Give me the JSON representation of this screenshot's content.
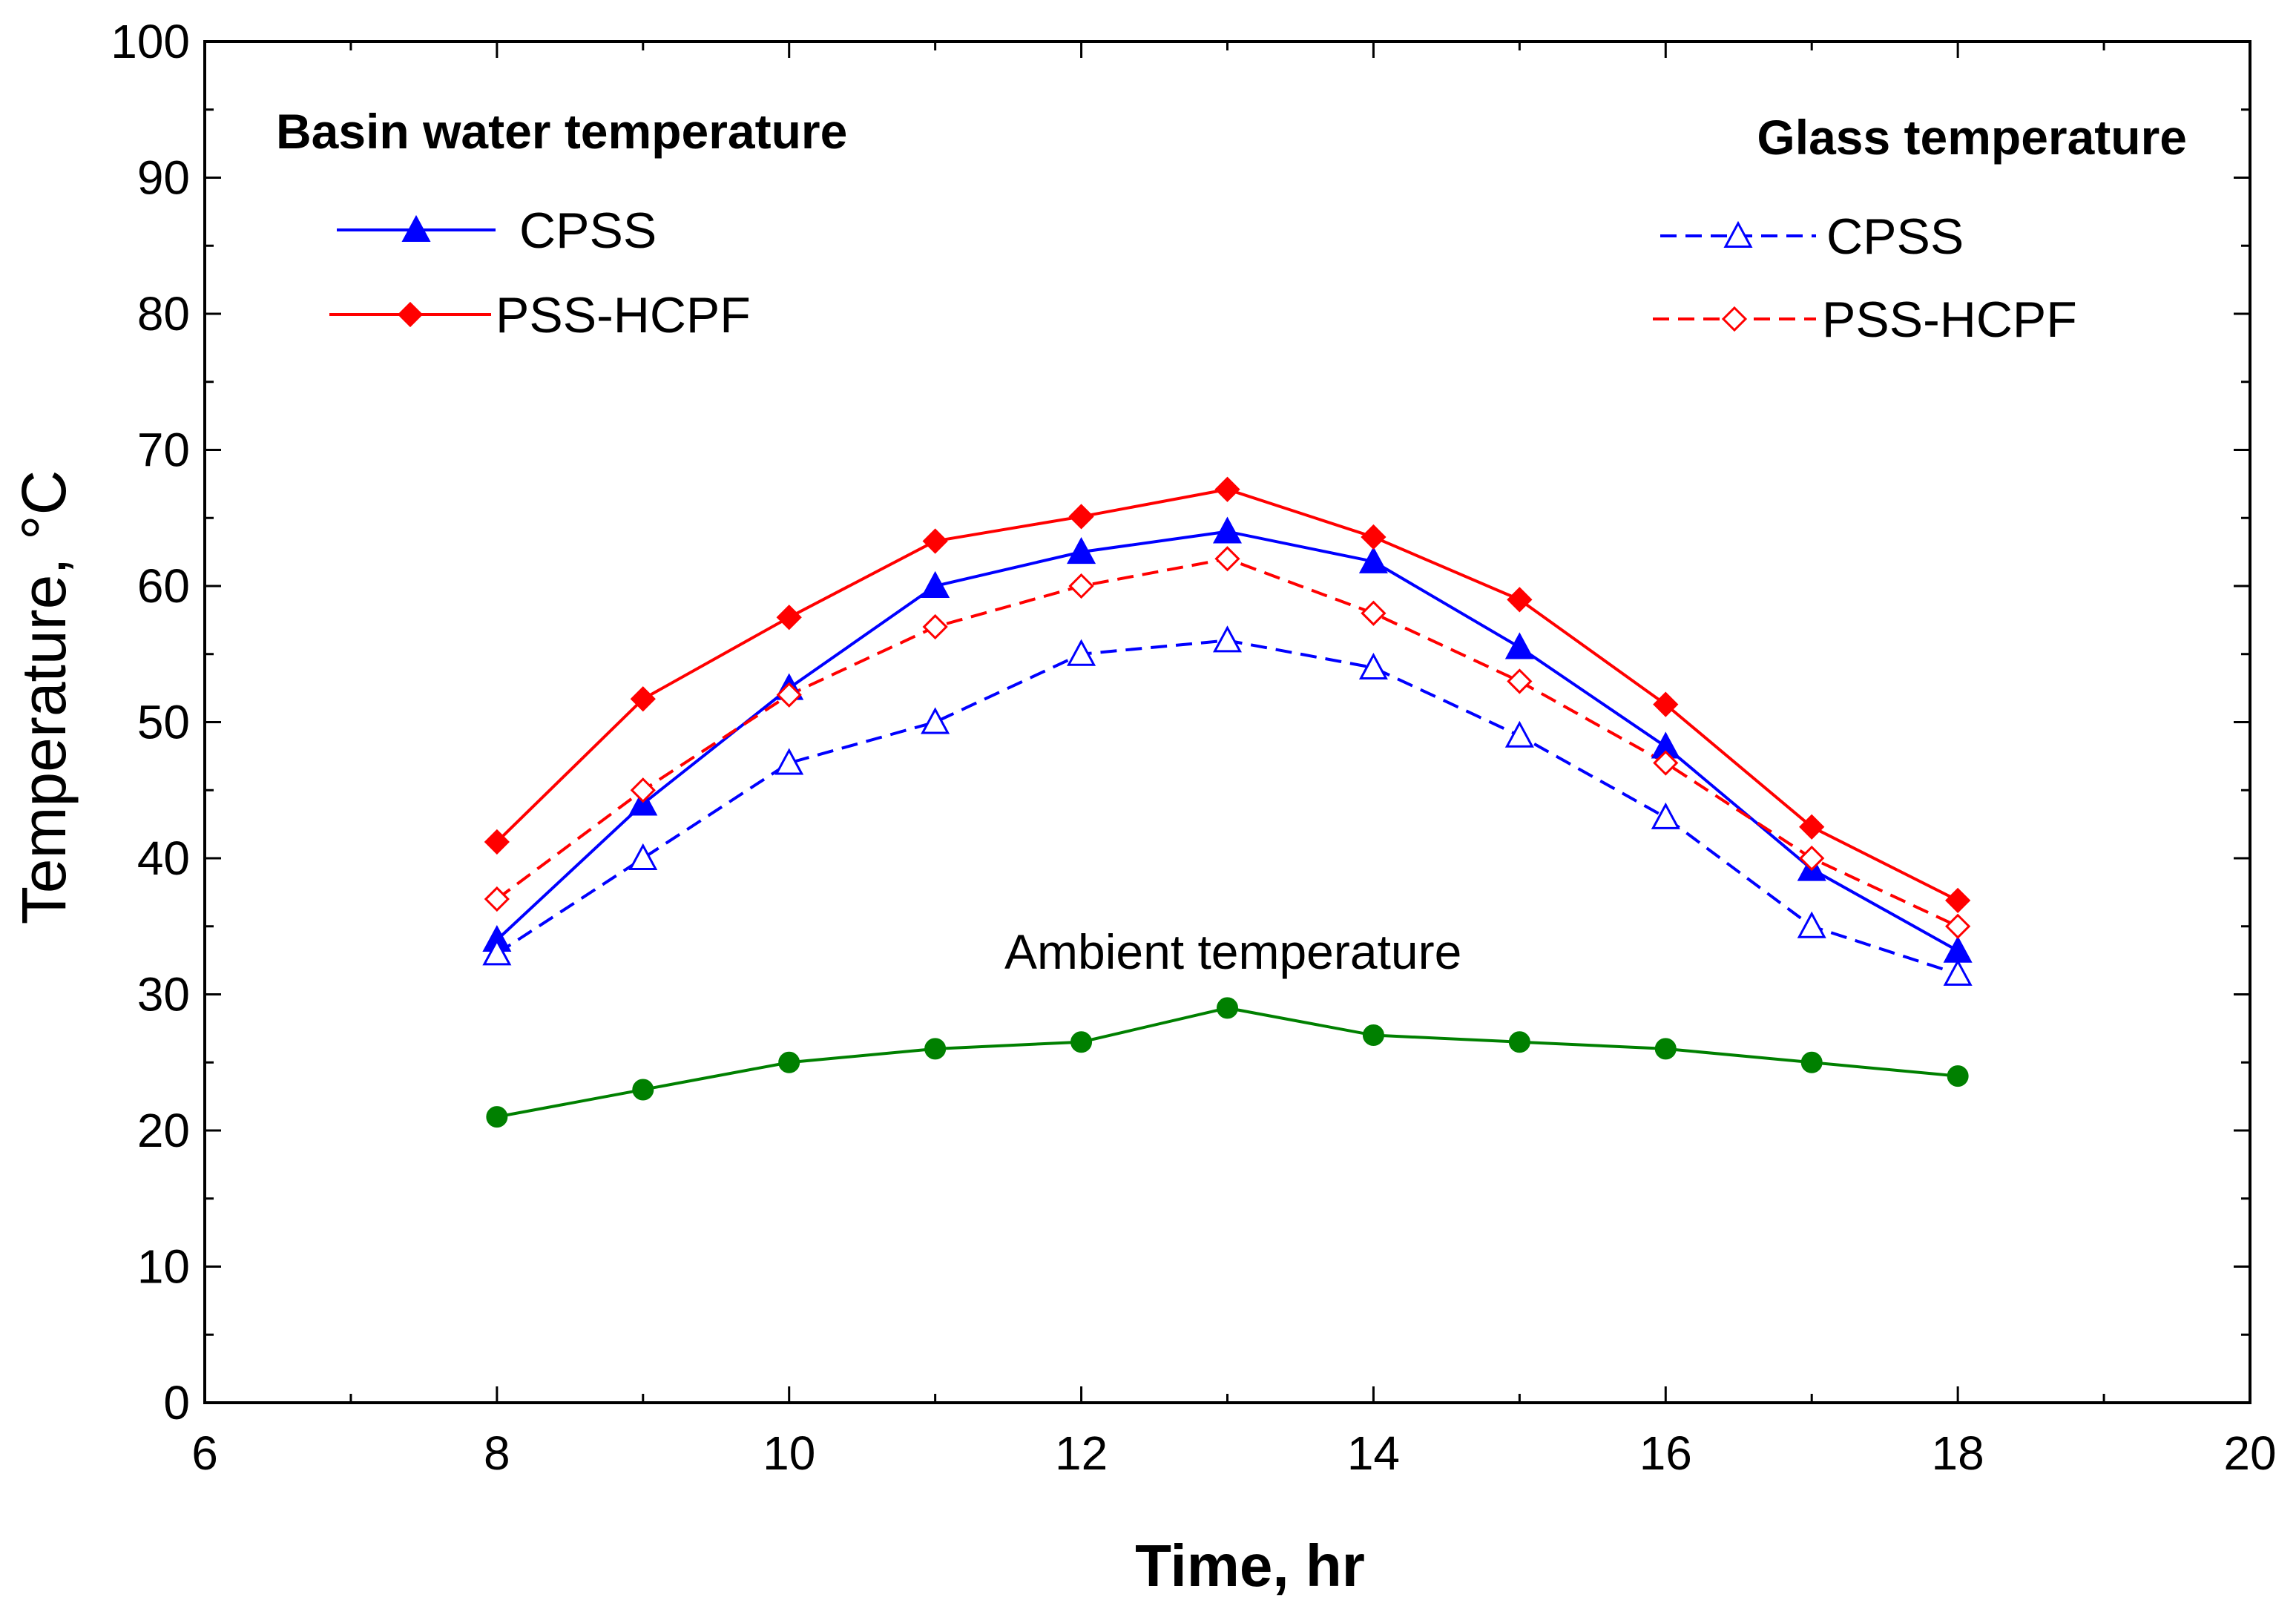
{
  "chart_data": {
    "type": "line",
    "xlabel": "Time, hr",
    "ylabel": "Temperature, °C",
    "xlim": [
      6,
      20
    ],
    "ylim": [
      0,
      100
    ],
    "xticks": [
      6,
      8,
      10,
      12,
      14,
      16,
      18,
      20
    ],
    "yticks": [
      0,
      10,
      20,
      30,
      40,
      50,
      60,
      70,
      80,
      90,
      100
    ],
    "grid": false,
    "x": [
      8,
      9,
      10,
      11,
      12,
      13,
      14,
      15,
      16,
      17,
      18
    ],
    "legend_groups": [
      {
        "heading": "Basin water temperature",
        "placement": "top-left"
      },
      {
        "heading": "Glass temperature",
        "placement": "top-right"
      }
    ],
    "annotations": [
      {
        "text": "Ambient temperature"
      }
    ],
    "series": [
      {
        "name": "CPSS",
        "group": "Basin water temperature",
        "color": "#0000ff",
        "dash": "solid",
        "marker": "triangle",
        "filled": true,
        "values": [
          34,
          44,
          52.5,
          60,
          62.5,
          64,
          61.8,
          55.5,
          48.2,
          39.2,
          33.2
        ]
      },
      {
        "name": "PSS-HCPF",
        "group": "Basin water temperature",
        "color": "#ff0000",
        "dash": "solid",
        "marker": "diamond",
        "filled": true,
        "values": [
          41.2,
          51.7,
          57.7,
          63.3,
          65.1,
          67.1,
          63.6,
          59,
          51.3,
          42.3,
          36.9
        ]
      },
      {
        "name": "CPSS",
        "group": "Glass temperature",
        "color": "#0000ff",
        "dash": "dashed",
        "marker": "triangle",
        "filled": false,
        "values": [
          33,
          40,
          47,
          50,
          55,
          56,
          54,
          49,
          43,
          35,
          31.5
        ]
      },
      {
        "name": "PSS-HCPF",
        "group": "Glass temperature",
        "color": "#ff0000",
        "dash": "dashed",
        "marker": "diamond",
        "filled": false,
        "values": [
          37,
          45,
          52,
          57,
          60,
          62,
          58,
          53,
          47,
          40,
          35
        ]
      },
      {
        "name": "",
        "group": "Ambient temperature",
        "color": "#008000",
        "dash": "solid",
        "marker": "circle",
        "filled": true,
        "values": [
          21,
          23,
          25,
          26,
          26.5,
          29,
          27,
          26.5,
          26,
          25,
          24
        ]
      }
    ]
  }
}
